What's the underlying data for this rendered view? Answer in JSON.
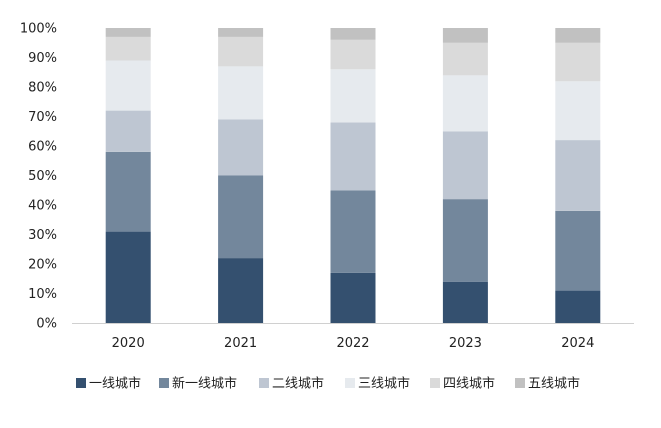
{
  "chart_data": {
    "type": "bar",
    "stacked": true,
    "normalized": true,
    "title": "",
    "xlabel": "",
    "ylabel": "",
    "ylim": [
      0,
      100
    ],
    "yticks": [
      "0%",
      "10%",
      "20%",
      "30%",
      "40%",
      "50%",
      "60%",
      "70%",
      "80%",
      "90%",
      "100%"
    ],
    "categories": [
      "2020",
      "2021",
      "2022",
      "2023",
      "2024"
    ],
    "grid": false,
    "legend_position": "bottom",
    "series": [
      {
        "name": "一线城市",
        "color": "#34506f",
        "values": [
          31,
          22,
          17,
          14,
          11
        ]
      },
      {
        "name": "新一线城市",
        "color": "#73879c",
        "values": [
          27,
          28,
          28,
          28,
          27
        ]
      },
      {
        "name": "二线城市",
        "color": "#bec6d2",
        "values": [
          14,
          19,
          23,
          23,
          24
        ]
      },
      {
        "name": "三线城市",
        "color": "#e6eaee",
        "values": [
          17,
          18,
          18,
          19,
          20
        ]
      },
      {
        "name": "四线城市",
        "color": "#dadada",
        "values": [
          8,
          10,
          10,
          11,
          13
        ]
      },
      {
        "name": "五线城市",
        "color": "#c1c1c1",
        "values": [
          3,
          3,
          4,
          5,
          5
        ]
      }
    ]
  }
}
